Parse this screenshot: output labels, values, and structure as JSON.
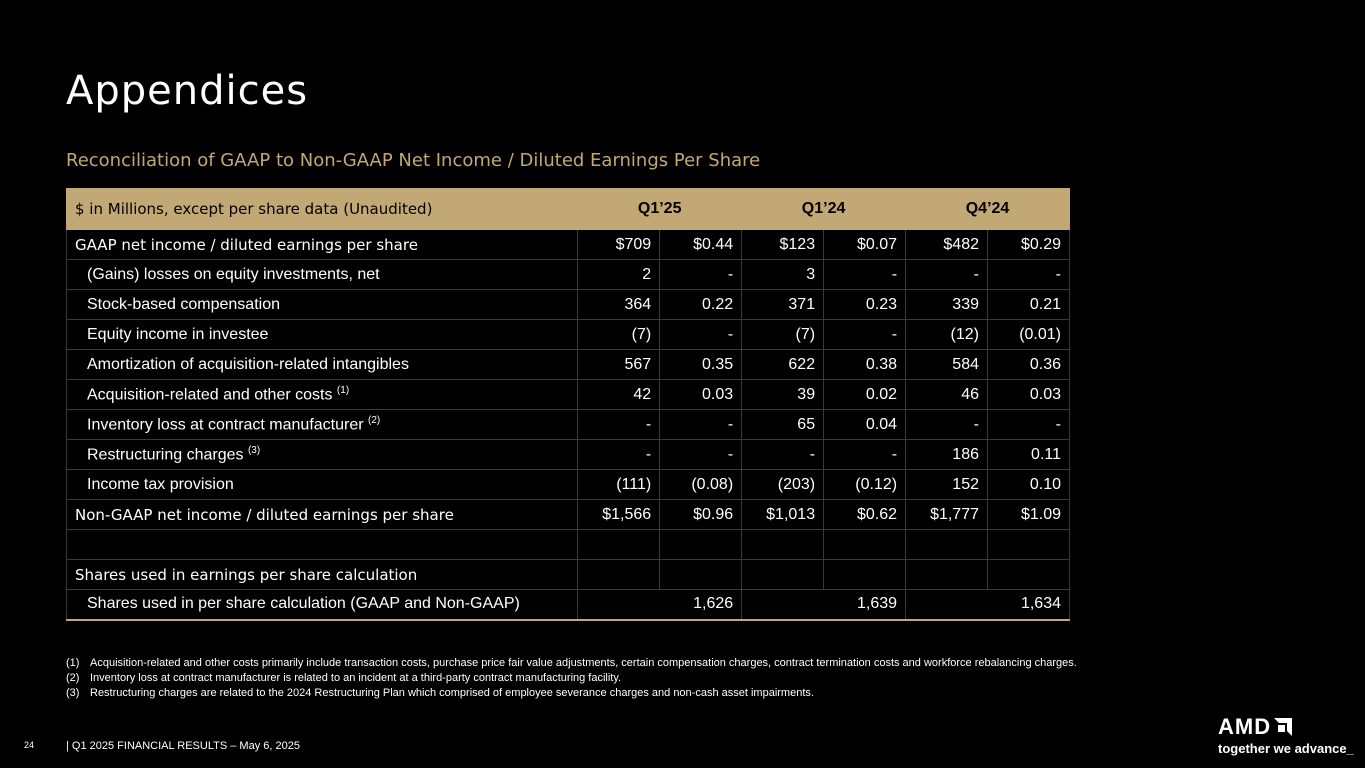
{
  "slide": {
    "title": "Appendices",
    "subtitle": "Reconciliation of GAAP to Non-GAAP Net Income / Diluted Earnings Per Share"
  },
  "table": {
    "header_label": "$ in Millions, except per share data (Unaudited)",
    "periods": [
      "Q1’25",
      "Q1’24",
      "Q4’24"
    ],
    "rows": [
      {
        "label": "GAAP net income / diluted earnings per share",
        "note": "",
        "values": [
          "$709",
          "$0.44",
          "$123",
          "$0.07",
          "$482",
          "$0.29"
        ]
      },
      {
        "label": "(Gains) losses on equity investments, net",
        "note": "",
        "values": [
          "2",
          "-",
          "3",
          "-",
          "-",
          "-"
        ]
      },
      {
        "label": "Stock-based compensation",
        "note": "",
        "values": [
          "364",
          "0.22",
          "371",
          "0.23",
          "339",
          "0.21"
        ]
      },
      {
        "label": "Equity income in investee",
        "note": "",
        "values": [
          "(7)",
          "-",
          "(7)",
          "-",
          "(12)",
          "(0.01)"
        ]
      },
      {
        "label": "Amortization of acquisition-related intangibles",
        "note": "",
        "values": [
          "567",
          "0.35",
          "622",
          "0.38",
          "584",
          "0.36"
        ]
      },
      {
        "label": "Acquisition-related and other costs ",
        "note": "(1)",
        "values": [
          "42",
          "0.03",
          "39",
          "0.02",
          "46",
          "0.03"
        ]
      },
      {
        "label": "Inventory loss at contract manufacturer ",
        "note": "(2)",
        "values": [
          "-",
          "-",
          "65",
          "0.04",
          "-",
          "-"
        ]
      },
      {
        "label": "Restructuring charges ",
        "note": "(3)",
        "values": [
          "-",
          "-",
          "-",
          "-",
          "186",
          "0.11"
        ]
      },
      {
        "label": "Income tax provision",
        "note": "",
        "values": [
          "(111)",
          "(0.08)",
          "(203)",
          "(0.12)",
          "152",
          "0.10"
        ]
      },
      {
        "label": "Non-GAAP net income / diluted earnings per share",
        "note": "",
        "values": [
          "$1,566",
          "$0.96",
          "$1,013",
          "$0.62",
          "$1,777",
          "$1.09"
        ]
      }
    ],
    "shares_section_label": "Shares used in earnings per share calculation",
    "shares_row": {
      "label": "Shares used in per share calculation (GAAP and Non-GAAP)",
      "values": [
        "1,626",
        "1,639",
        "1,634"
      ]
    }
  },
  "footnotes": [
    {
      "num": "(1)",
      "text": "Acquisition-related and other costs primarily include transaction costs, purchase price fair value adjustments, certain compensation charges, contract termination costs and workforce rebalancing charges."
    },
    {
      "num": "(2)",
      "text": "Inventory loss at contract manufacturer is related to an incident at a third-party contract manufacturing facility."
    },
    {
      "num": "(3)",
      "text": "Restructuring charges are related to the 2024 Restructuring Plan which comprised of employee severance charges and non-cash asset impairments."
    }
  ],
  "footer": {
    "page_number": "24",
    "text": "|   Q1 2025 FINANCIAL RESULTS – May 6, 2025"
  },
  "logo": {
    "wordmark": "AMD",
    "tagline": "together we advance_"
  },
  "colors": {
    "accent_gold": "#c2a875",
    "background": "#000000"
  }
}
